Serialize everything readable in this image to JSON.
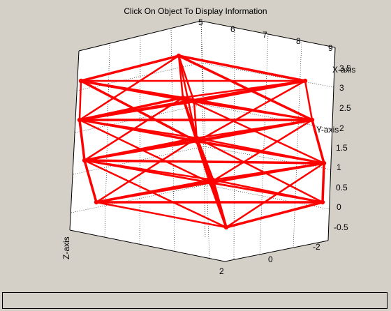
{
  "figure": {
    "title": "Click On Object To Display Information",
    "background_color": "#d4d0c8",
    "plot_color": "#ff0000"
  },
  "axes": {
    "x_label": "X-axis",
    "y_label": "Y-axis",
    "z_label": "Z-axis",
    "x_ticks": [
      "5",
      "6",
      "7",
      "8",
      "9"
    ],
    "y_ticks": [
      "-0.5",
      "0",
      "0.5",
      "1",
      "1.5",
      "2",
      "2.5",
      "3",
      "3.5"
    ],
    "z_ticks": [
      "-2",
      "0",
      "2"
    ],
    "grid": "on"
  },
  "info_bar": {
    "text": ""
  }
}
